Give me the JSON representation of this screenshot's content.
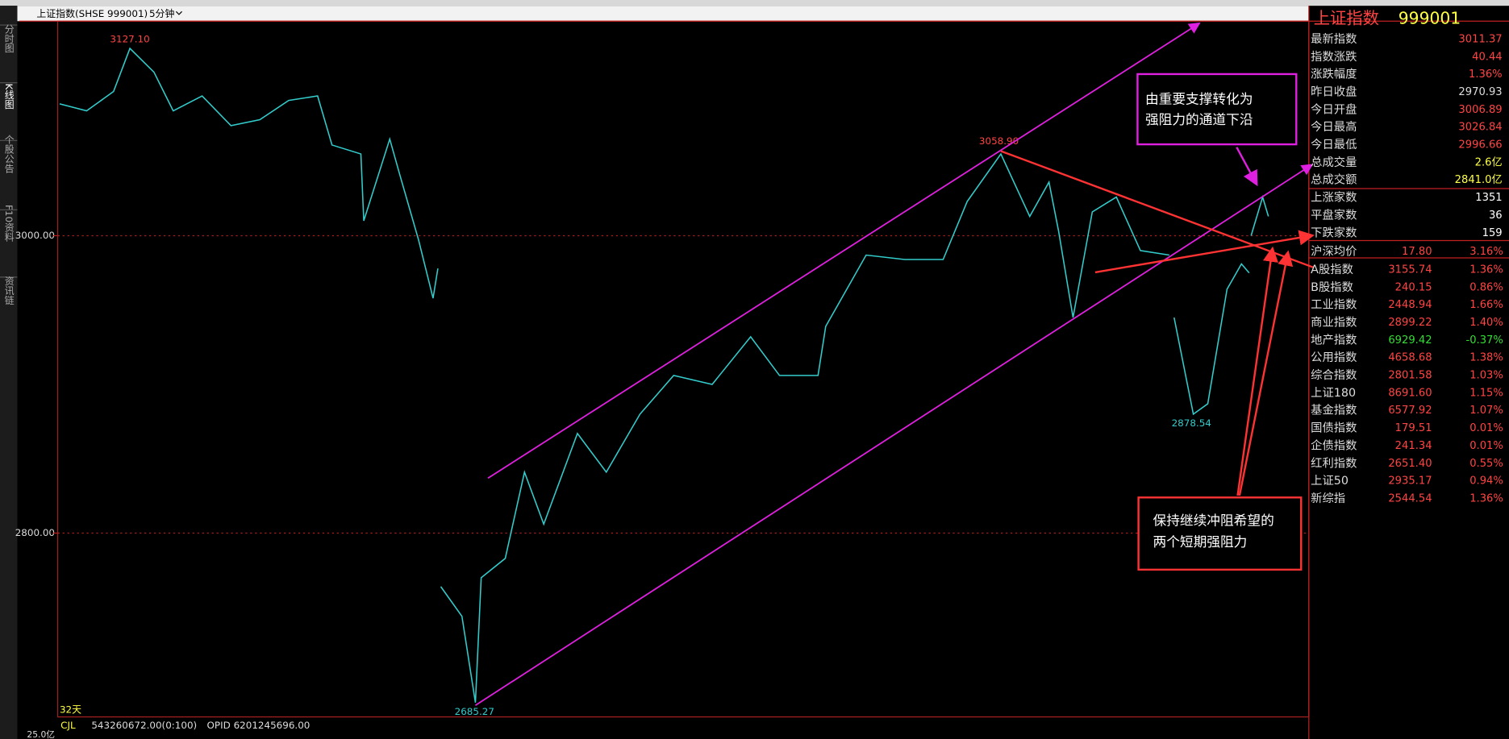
{
  "header": {
    "title": "上证指数(SHSE 999001)",
    "period": "5分钟"
  },
  "side_tabs": [
    "分时图",
    "K线图",
    "个股公告",
    "F10资料",
    "资讯链"
  ],
  "chart_data": {
    "type": "line",
    "color": "#33cccc",
    "x": [
      2,
      30,
      58,
      75,
      100,
      120,
      150,
      180,
      210,
      240,
      270,
      285,
      315,
      318,
      345,
      355,
      375,
      390,
      395,
      396,
      398,
      420,
      434,
      440,
      465,
      485,
      505,
      540,
      570,
      605,
      640,
      680,
      720,
      750,
      790,
      798,
      840,
      880,
      920,
      945,
      980,
      1010,
      1030,
      1040,
      1055,
      1075,
      1100,
      1125,
      1155,
      1158,
      1160,
      1180,
      1195,
      1215,
      1230,
      1238,
      1239,
      1240,
      1252,
      1258
    ],
    "values": [
      3088.7,
      3084,
      3097,
      3126,
      3110,
      3084,
      3094,
      3074,
      3078,
      3091,
      3094,
      3061,
      3055,
      3010,
      3065,
      3042,
      2997,
      2958,
      2978,
      null,
      2764,
      2744,
      2686,
      2770,
      2783,
      2841,
      2806,
      2867,
      2841,
      2880,
      2906,
      2900,
      2932,
      2906,
      2906,
      2939,
      2987,
      2984,
      2984,
      3023,
      3055,
      3013,
      3036,
      3003,
      2945,
      3016,
      3026,
      2990,
      2987,
      null,
      2945,
      2880,
      2887,
      2964,
      2981,
      2975,
      null,
      3000,
      3026,
      3013
    ],
    "xlim": [
      0,
      1300
    ],
    "ylim": [
      2676.4,
      3144.3
    ],
    "yticks": [
      {
        "value": 2800,
        "label": "2800.00"
      },
      {
        "value": 3000,
        "label": "3000.00"
      }
    ],
    "grid": true,
    "peak_labels": [
      "3127.10",
      "3058.90",
      "2685.27",
      "2878.54"
    ],
    "period_label": "32天"
  },
  "indicator": {
    "name": "CJL",
    "value": "543260672.00(0:100)",
    "extra": "OPID 6201245696.00",
    "axis_label": "25.0亿"
  },
  "panel": {
    "title": "上证指数",
    "code": "999001",
    "rows": [
      {
        "label": "最新指数",
        "value": "3011.37",
        "color": "#ff4444"
      },
      {
        "label": "指数涨跌",
        "value": "40.44",
        "color": "#ff4444"
      },
      {
        "label": "涨跌幅度",
        "value": "1.36%",
        "color": "#ff4444"
      },
      {
        "label": "昨日收盘",
        "value": "2970.93",
        "color": "#dddddd"
      },
      {
        "label": "今日开盘",
        "value": "3006.89",
        "color": "#ff4444"
      },
      {
        "label": "今日最高",
        "value": "3026.84",
        "color": "#ff4444"
      },
      {
        "label": "今日最低",
        "value": "2996.66",
        "color": "#ff4444"
      },
      {
        "label": "总成交量",
        "value": "2.6亿",
        "color": "#ffff44"
      },
      {
        "label": "总成交额",
        "value": "2841.0亿",
        "color": "#ffff44"
      },
      {
        "label": "上涨家数",
        "value": "1351",
        "color": "#ffffff"
      },
      {
        "label": "平盘家数",
        "value": "36",
        "color": "#ffffff"
      },
      {
        "label": "下跌家数",
        "value": "159",
        "color": "#ffffff"
      }
    ],
    "index_rows": [
      {
        "label": "沪深均价",
        "value": "17.80",
        "change": "3.16%",
        "color": "#ff4444"
      },
      {
        "label": "A股指数",
        "value": "3155.74",
        "change": "1.36%",
        "color": "#ff4444"
      },
      {
        "label": "B股指数",
        "value": "240.15",
        "change": "0.86%",
        "color": "#ff4444"
      },
      {
        "label": "工业指数",
        "value": "2448.94",
        "change": "1.66%",
        "color": "#ff4444"
      },
      {
        "label": "商业指数",
        "value": "2899.22",
        "change": "1.40%",
        "color": "#ff4444"
      },
      {
        "label": "地产指数",
        "value": "6929.42",
        "change": "-0.37%",
        "color": "#33dd33"
      },
      {
        "label": "公用指数",
        "value": "4658.68",
        "change": "1.38%",
        "color": "#ff4444"
      },
      {
        "label": "综合指数",
        "value": "2801.58",
        "change": "1.03%",
        "color": "#ff4444"
      },
      {
        "label": "上证180",
        "value": "8691.60",
        "change": "1.15%",
        "color": "#ff4444"
      },
      {
        "label": "基金指数",
        "value": "6577.92",
        "change": "1.07%",
        "color": "#ff4444"
      },
      {
        "label": "国债指数",
        "value": "179.51",
        "change": "0.01%",
        "color": "#ff4444"
      },
      {
        "label": "企债指数",
        "value": "241.34",
        "change": "0.01%",
        "color": "#ff4444"
      },
      {
        "label": "红利指数",
        "value": "2651.40",
        "change": "0.55%",
        "color": "#ff4444"
      },
      {
        "label": "上证50",
        "value": "2935.17",
        "change": "0.94%",
        "color": "#ff4444"
      },
      {
        "label": "新综指",
        "value": "2544.54",
        "change": "1.36%",
        "color": "#ff4444"
      }
    ]
  },
  "notes": [
    [
      "由重要支撑转化为",
      "强阻力的通道下沿"
    ],
    [
      "保持继续冲阻希望的",
      "两个短期强阻力"
    ]
  ]
}
